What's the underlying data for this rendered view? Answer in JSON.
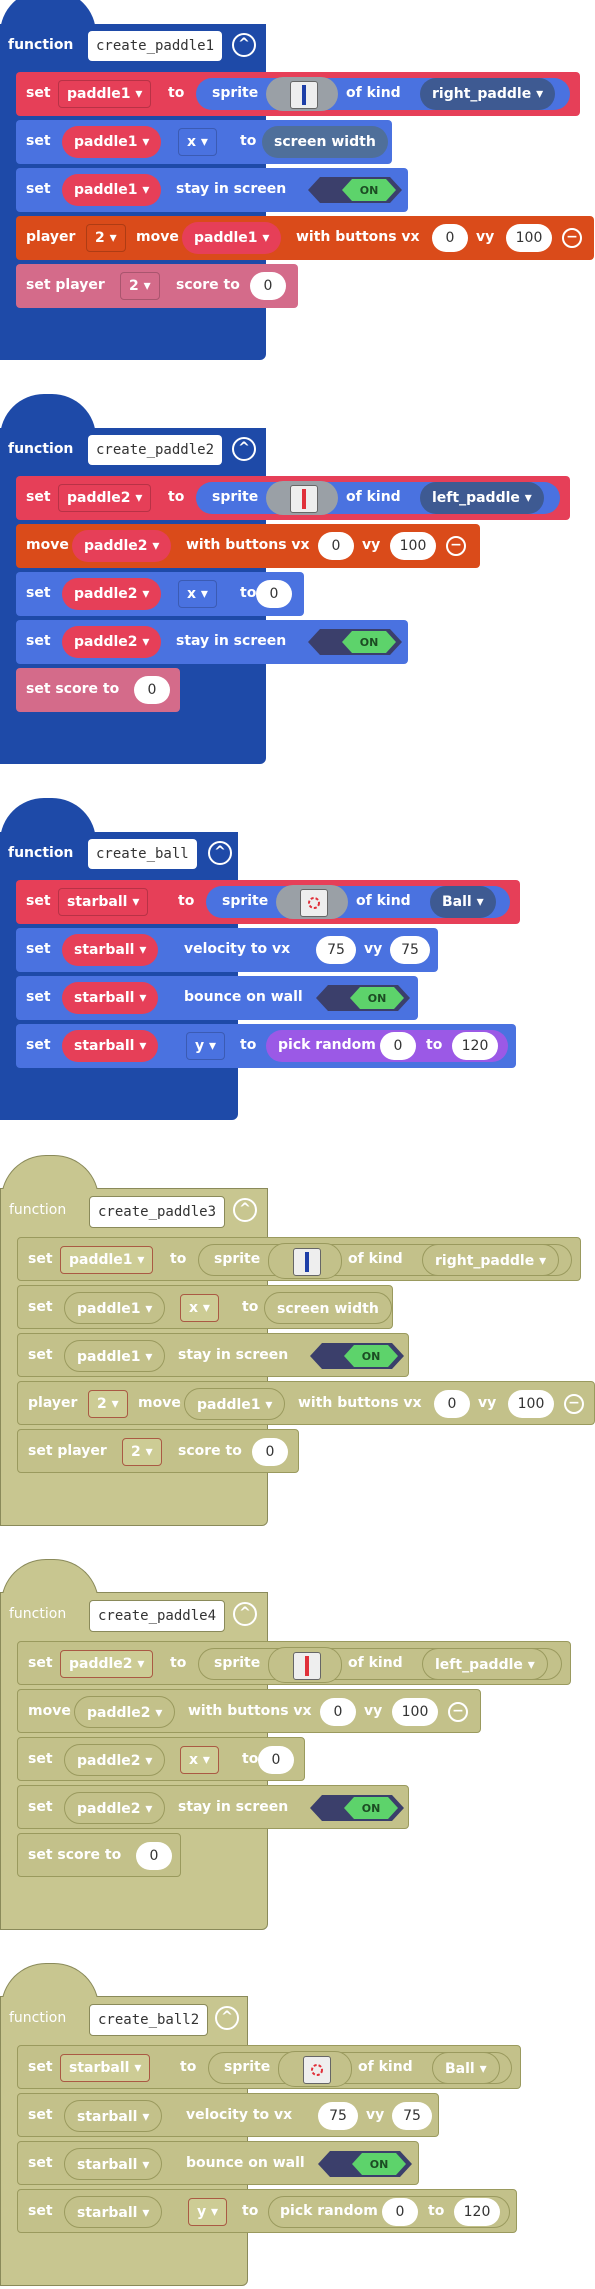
{
  "blocks": [
    {
      "header": "function",
      "name": "create_paddle1",
      "rows": [
        {
          "kind": "set-sprite",
          "label": "set",
          "var": "paddle1",
          "to": "to",
          "sprite": "sprite",
          "of_kind": "of kind",
          "kind_value": "right_paddle"
        },
        {
          "kind": "set-prop",
          "label": "set",
          "var": "paddle1",
          "prop": "x",
          "to": "to",
          "value": "screen width"
        },
        {
          "kind": "stay",
          "label": "set",
          "var": "paddle1",
          "text": "stay in screen",
          "toggle": "ON"
        },
        {
          "kind": "player-move",
          "label": "player",
          "player": "2",
          "move": "move",
          "var": "paddle1",
          "text": "with buttons vx",
          "vx": "0",
          "vy_label": "vy",
          "vy": "100"
        },
        {
          "kind": "score",
          "label": "set player",
          "player": "2",
          "text": "score to",
          "value": "0"
        }
      ]
    },
    {
      "header": "function",
      "name": "create_paddle2",
      "rows": [
        {
          "label": "set",
          "var": "paddle2",
          "to": "to",
          "sprite": "sprite",
          "of_kind": "of kind",
          "kind_value": "left_paddle"
        },
        {
          "label": "move",
          "var": "paddle2",
          "text": "with buttons vx",
          "vx": "0",
          "vy_label": "vy",
          "vy": "100"
        },
        {
          "label": "set",
          "var": "paddle2",
          "prop": "x",
          "to": "to",
          "value": "0"
        },
        {
          "label": "set",
          "var": "paddle2",
          "text": "stay in screen",
          "toggle": "ON"
        },
        {
          "label": "set score to",
          "value": "0"
        }
      ]
    },
    {
      "header": "function",
      "name": "create_ball",
      "rows": [
        {
          "label": "set",
          "var": "starball",
          "to": "to",
          "sprite": "sprite",
          "of_kind": "of kind",
          "kind_value": "Ball"
        },
        {
          "label": "set",
          "var": "starball",
          "text": "velocity to vx",
          "vx": "75",
          "vy_label": "vy",
          "vy": "75"
        },
        {
          "label": "set",
          "var": "starball",
          "text": "bounce on wall",
          "toggle": "ON"
        },
        {
          "label": "set",
          "var": "starball",
          "prop": "y",
          "to": "to",
          "text": "pick random",
          "a": "0",
          "to2": "to",
          "b": "120"
        }
      ]
    },
    {
      "header": "function",
      "name": "create_paddle3"
    },
    {
      "header": "function",
      "name": "create_paddle4"
    },
    {
      "header": "function",
      "name": "create_ball2"
    }
  ],
  "colors": {
    "function": "#1e4aa8",
    "sprites": "#4a72e0",
    "variable": "#e63f58",
    "controller": "#da4b1a",
    "info": "#d46b8a",
    "disabled": "#c8c690"
  }
}
